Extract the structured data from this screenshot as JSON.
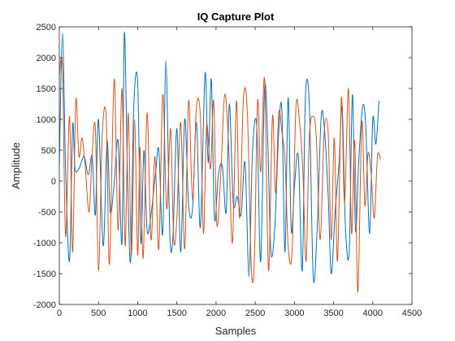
{
  "chart_data": {
    "type": "line",
    "title": "IQ Capture Plot",
    "xlabel": "Samples",
    "ylabel": "Amplitude",
    "xlim": [
      0,
      4500
    ],
    "ylim": [
      -2000,
      2500
    ],
    "xticks": [
      0,
      500,
      1000,
      1500,
      2000,
      2500,
      3000,
      3500,
      4000,
      4500
    ],
    "yticks": [
      -2000,
      -1500,
      -1000,
      -500,
      0,
      500,
      1000,
      1500,
      2000,
      2500
    ],
    "grid": false,
    "series": [
      {
        "color": "#0072BD",
        "x": [
          0,
          40,
          80,
          130,
          170,
          200,
          250,
          280,
          320,
          370,
          420,
          460,
          500,
          560,
          610,
          650,
          700,
          750,
          800,
          830,
          870,
          910,
          950,
          1000,
          1040,
          1080,
          1120,
          1170,
          1230,
          1270,
          1320,
          1360,
          1410,
          1450,
          1500,
          1550,
          1600,
          1650,
          1700,
          1750,
          1800,
          1860,
          1900,
          1940,
          1980,
          2030,
          2080,
          2130,
          2170,
          2220,
          2270,
          2320,
          2370,
          2420,
          2460,
          2500,
          2530,
          2570,
          2620,
          2660,
          2700,
          2750,
          2800,
          2840,
          2880,
          2920,
          2960,
          3000,
          3050,
          3100,
          3140,
          3190,
          3240,
          3290,
          3340,
          3380,
          3430,
          3470,
          3520,
          3570,
          3610,
          3650,
          3700,
          3740,
          3780,
          3820,
          3870,
          3910,
          3960,
          4000,
          4040,
          4080
        ],
        "y": [
          200,
          2400,
          200,
          -1300,
          900,
          200,
          200,
          300,
          400,
          100,
          400,
          -550,
          1000,
          -1050,
          650,
          -500,
          -50,
          650,
          -1000,
          2400,
          100,
          -1300,
          1200,
          1600,
          -1000,
          500,
          -800,
          -550,
          150,
          500,
          -850,
          1950,
          -850,
          -900,
          850,
          -1150,
          1000,
          -400,
          -450,
          950,
          -750,
          1750,
          300,
          1650,
          -600,
          100,
          250,
          -500,
          1250,
          -350,
          -250,
          -550,
          300,
          -1550,
          300,
          1000,
          600,
          -1300,
          1500,
          650,
          -1150,
          -750,
          800,
          1150,
          -1150,
          1350,
          -800,
          -100,
          400,
          -1450,
          1350,
          1250,
          -1550,
          -800,
          1000,
          900,
          -200,
          -1500,
          -500,
          300,
          1200,
          -700,
          -1150,
          1400,
          -800,
          300,
          1200,
          900,
          -850,
          1000,
          600,
          1300
        ]
      },
      {
        "color": "#D95319",
        "x": [
          0,
          40,
          80,
          130,
          170,
          210,
          250,
          290,
          330,
          380,
          420,
          460,
          500,
          550,
          600,
          640,
          700,
          750,
          800,
          840,
          880,
          920,
          960,
          1000,
          1030,
          1070,
          1120,
          1170,
          1220,
          1270,
          1320,
          1370,
          1420,
          1460,
          1500,
          1550,
          1600,
          1650,
          1700,
          1750,
          1800,
          1840,
          1880,
          1930,
          1970,
          2010,
          2060,
          2110,
          2160,
          2210,
          2260,
          2300,
          2350,
          2400,
          2450,
          2490,
          2530,
          2570,
          2620,
          2670,
          2720,
          2760,
          2800,
          2840,
          2880,
          2920,
          2970,
          3020,
          3070,
          3110,
          3150,
          3190,
          3240,
          3280,
          3330,
          3380,
          3430,
          3470,
          3510,
          3550,
          3600,
          3640,
          3690,
          3730,
          3770,
          3810,
          3860,
          3900,
          3940,
          3980,
          4020,
          4060,
          4100
        ],
        "y": [
          1700,
          1850,
          -900,
          1050,
          -1150,
          1300,
          400,
          700,
          250,
          -500,
          450,
          850,
          -1450,
          800,
          1000,
          -1350,
          1650,
          -800,
          1500,
          -1050,
          1100,
          -1200,
          1000,
          -1200,
          550,
          -1250,
          1100,
          -950,
          400,
          -1100,
          1400,
          -450,
          850,
          -950,
          -600,
          950,
          -1100,
          1300,
          -300,
          1200,
          1050,
          -850,
          900,
          200,
          1300,
          -700,
          100,
          1400,
          600,
          -1000,
          1300,
          -600,
          1350,
          1100,
          -1400,
          -1250,
          1300,
          150,
          1650,
          -1450,
          1050,
          -200,
          1100,
          800,
          350,
          -1050,
          -1150,
          1200,
          900,
          100,
          -1300,
          700,
          1050,
          700,
          -950,
          800,
          800,
          -950,
          700,
          -1300,
          1350,
          -350,
          1500,
          -850,
          650,
          -1800,
          950,
          -400,
          450,
          100,
          -600,
          400,
          350
        ]
      }
    ]
  }
}
